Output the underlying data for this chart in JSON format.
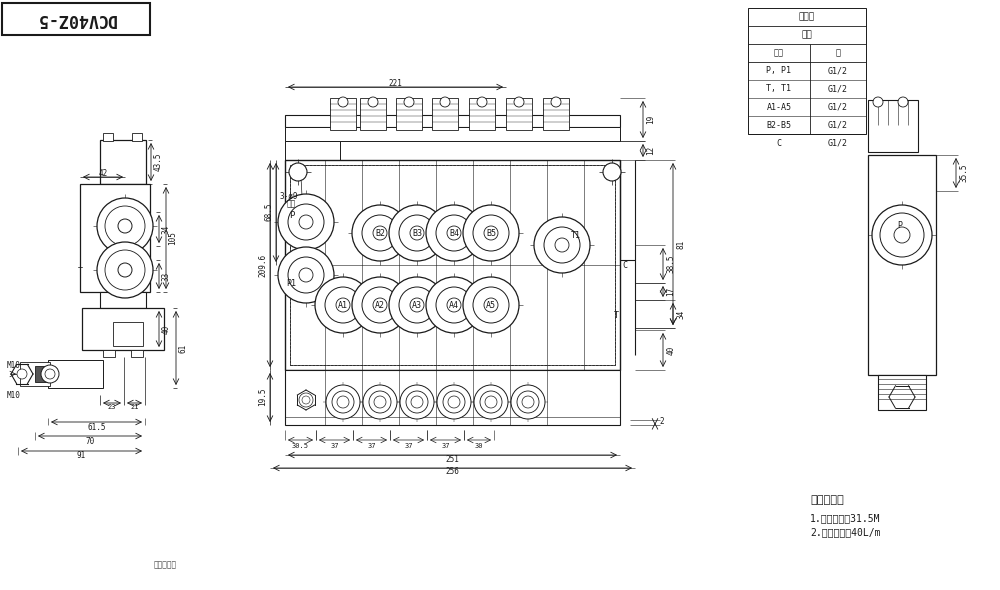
{
  "bg_color": "#ffffff",
  "line_color": "#1a1a1a",
  "title_text": "DCV40Z-5",
  "table_title": "螺纹规",
  "table_subtitle": "阀体",
  "table_headers": [
    "接口",
    "格"
  ],
  "table_rows": [
    [
      "P, P1",
      "G1/2"
    ],
    [
      "T, T1",
      "G1/2"
    ],
    [
      "A1-A5",
      "G1/2"
    ],
    [
      "B2-B5",
      "G1/2"
    ],
    [
      "C",
      "G1/2"
    ]
  ],
  "tech_title": "技术参数：",
  "tech_lines": [
    "1.额定压力：31.5M",
    "2.额定流量：40L/m"
  ],
  "watermark": "流体压阅图"
}
